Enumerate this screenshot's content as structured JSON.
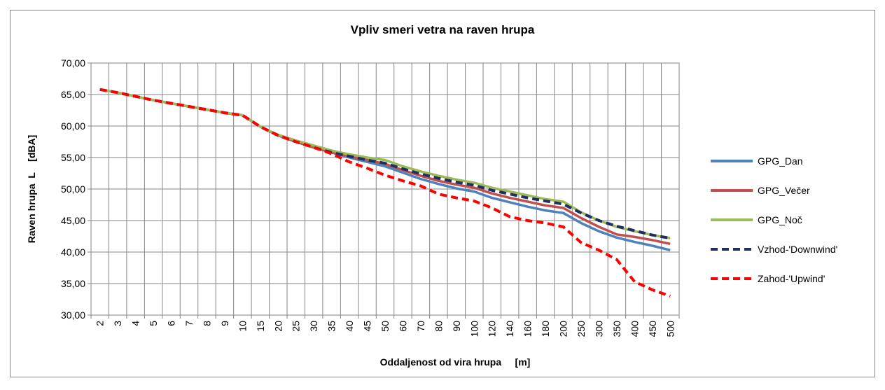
{
  "chart_data": {
    "type": "line",
    "title": "Vpliv smeri vetra na raven hrupa",
    "x_label": "Oddaljenost od vira hrupa     [m]",
    "y_label": "Raven hrupa  L    [dBA]",
    "categories": [
      "2",
      "3",
      "4",
      "5",
      "6",
      "7",
      "8",
      "9",
      "10",
      "15",
      "20",
      "25",
      "30",
      "35",
      "40",
      "45",
      "50",
      "60",
      "70",
      "80",
      "90",
      "100",
      "120",
      "140",
      "160",
      "180",
      "200",
      "250",
      "300",
      "350",
      "400",
      "450",
      "500"
    ],
    "ylim": [
      30,
      70
    ],
    "yticks": [
      {
        "value": 30,
        "label": "30,00"
      },
      {
        "value": 35,
        "label": "35,00"
      },
      {
        "value": 40,
        "label": "40,00"
      },
      {
        "value": 45,
        "label": "45,00"
      },
      {
        "value": 50,
        "label": "50,00"
      },
      {
        "value": 55,
        "label": "55,00"
      },
      {
        "value": 60,
        "label": "60,00"
      },
      {
        "value": 65,
        "label": "65,00"
      },
      {
        "value": 70,
        "label": "70,00"
      }
    ],
    "grid": true,
    "legend": "right",
    "series": [
      {
        "name": "GPG_Dan",
        "color": "#4f81bd",
        "dashed": false,
        "values": [
          65.8,
          65.3,
          64.7,
          64.1,
          63.6,
          63.1,
          62.6,
          62.1,
          61.7,
          59.9,
          58.5,
          57.5,
          56.6,
          55.8,
          55.0,
          54.3,
          53.6,
          52.6,
          51.6,
          50.8,
          50.1,
          49.6,
          48.6,
          47.9,
          47.2,
          46.6,
          46.2,
          44.6,
          43.3,
          42.3,
          41.6,
          41.0,
          40.3
        ]
      },
      {
        "name": "GPG_Večer",
        "color": "#c0504d",
        "dashed": false,
        "values": [
          65.8,
          65.3,
          64.7,
          64.1,
          63.6,
          63.1,
          62.6,
          62.1,
          61.7,
          59.9,
          58.5,
          57.5,
          56.6,
          55.8,
          55.2,
          54.6,
          54.0,
          53.0,
          52.1,
          51.3,
          50.7,
          50.2,
          49.3,
          48.6,
          48.0,
          47.4,
          47.0,
          45.4,
          44.0,
          42.8,
          42.4,
          41.9,
          41.3
        ]
      },
      {
        "name": "GPG_Noč",
        "color": "#9bbb59",
        "dashed": false,
        "values": [
          65.8,
          65.3,
          64.7,
          64.1,
          63.6,
          63.1,
          62.6,
          62.1,
          61.7,
          59.9,
          58.6,
          57.7,
          56.9,
          56.1,
          55.5,
          55.0,
          54.6,
          53.6,
          52.8,
          52.1,
          51.5,
          51.0,
          50.2,
          49.6,
          49.0,
          48.4,
          48.0,
          46.3,
          45.0,
          44.0,
          43.3,
          42.7,
          42.2
        ]
      },
      {
        "name": "Vzhod-'Downwind'",
        "color": "#1f2f5f",
        "dashed": true,
        "values": [
          65.8,
          65.3,
          64.7,
          64.1,
          63.6,
          63.1,
          62.6,
          62.1,
          61.7,
          59.9,
          58.5,
          57.5,
          56.6,
          55.8,
          55.2,
          54.6,
          54.1,
          53.2,
          52.4,
          51.7,
          51.1,
          50.6,
          49.8,
          49.2,
          48.6,
          48.1,
          47.6,
          46.2,
          45.0,
          44.1,
          43.4,
          42.7,
          42.2
        ]
      },
      {
        "name": "Zahod-'Upwind'",
        "color": "#ff0000",
        "dashed": true,
        "values": [
          65.8,
          65.3,
          64.7,
          64.1,
          63.6,
          63.1,
          62.6,
          62.1,
          61.7,
          59.9,
          58.5,
          57.5,
          56.6,
          55.6,
          54.3,
          53.3,
          52.2,
          51.3,
          50.5,
          49.2,
          48.6,
          48.1,
          47.0,
          45.6,
          45.0,
          44.6,
          44.0,
          41.5,
          40.3,
          38.8,
          35.3,
          34.0,
          33.0
        ]
      }
    ]
  }
}
